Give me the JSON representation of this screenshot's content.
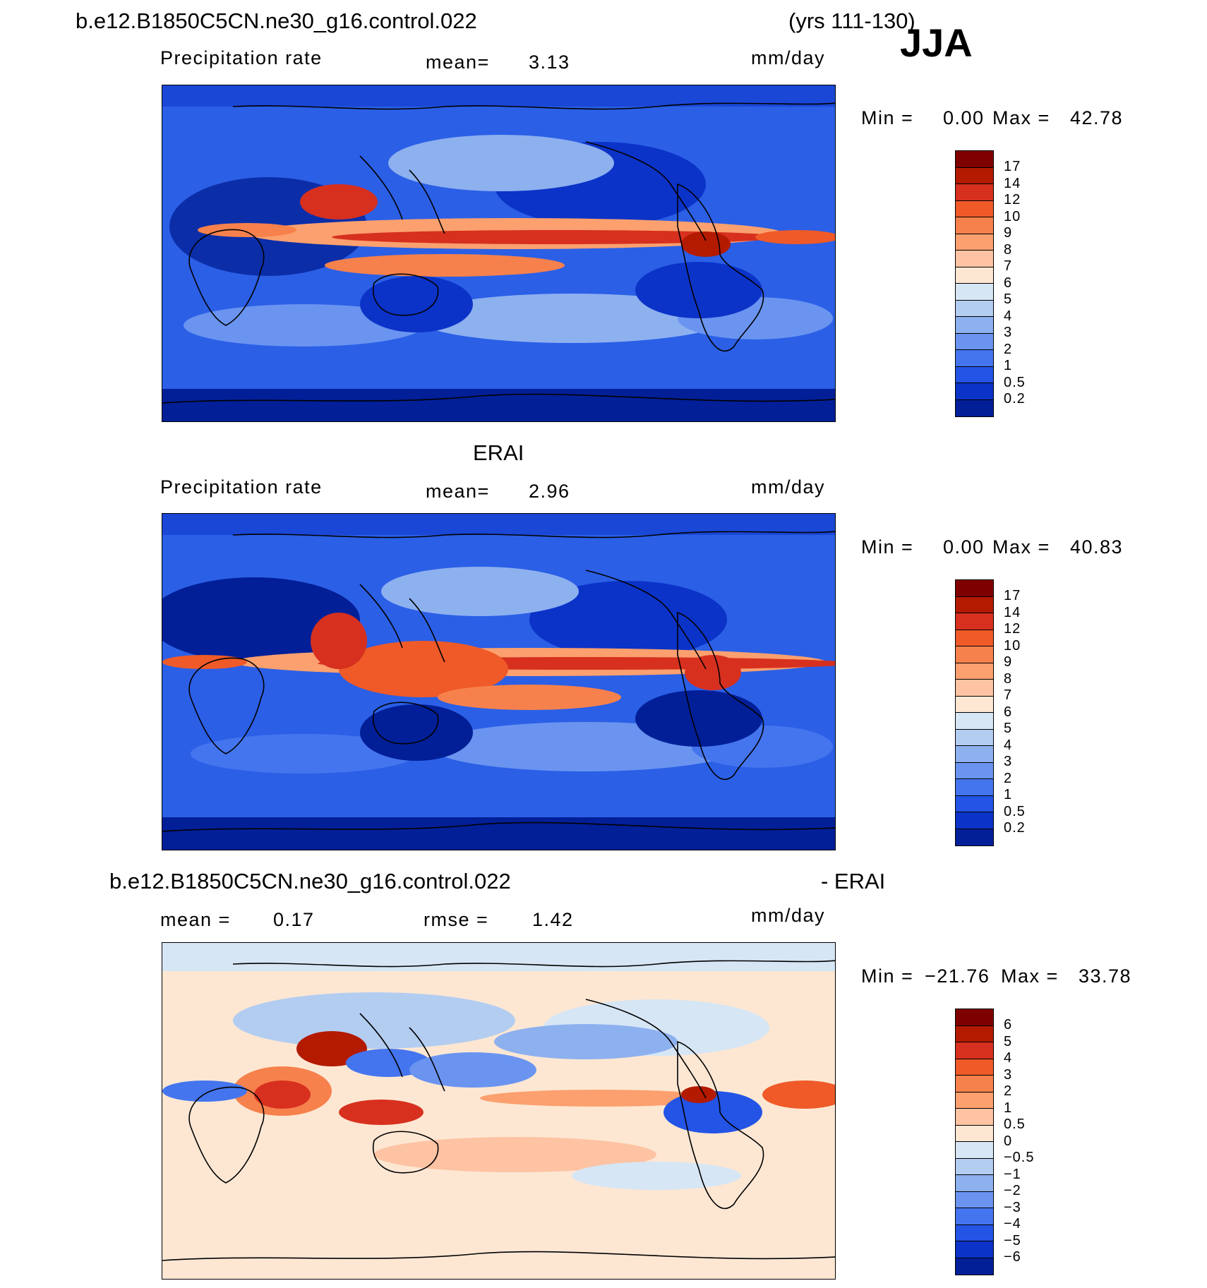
{
  "header": {
    "case_name": "b.e12.B1850C5CN.ne30_g16.control.022",
    "years": "(yrs 111-130)",
    "season": "JJA"
  },
  "panels": [
    {
      "id": "model",
      "title": "",
      "left_label": "Precipitation rate",
      "stat_label": "mean=",
      "stat_value": "3.13",
      "extra_label": "",
      "extra_value": "",
      "units": "mm/day",
      "min_label": "Min =",
      "min_value": "0.00",
      "max_label": "Max =",
      "max_value": "42.78",
      "colorbar_labels": [
        "17",
        "14",
        "12",
        "10",
        "9",
        "8",
        "7",
        "6",
        "5",
        "4",
        "3",
        "2",
        "1",
        "0.5",
        "0.2"
      ],
      "colorbar_colors": [
        "#7f0000",
        "#b31a00",
        "#d7301f",
        "#ef5a28",
        "#f7814c",
        "#fba06e",
        "#fdc3a2",
        "#fde7d3",
        "#d6e6f5",
        "#b3cdf1",
        "#8db0ef",
        "#6a94f0",
        "#4475ef",
        "#2354e6",
        "#0b33c8",
        "#021f98"
      ],
      "map_description": "model JJA precipitation"
    },
    {
      "id": "obs",
      "title": "ERAI",
      "left_label": "Precipitation rate",
      "stat_label": "mean=",
      "stat_value": "2.96",
      "extra_label": "",
      "extra_value": "",
      "units": "mm/day",
      "min_label": "Min =",
      "min_value": "0.00",
      "max_label": "Max =",
      "max_value": "40.83",
      "colorbar_labels": [
        "17",
        "14",
        "12",
        "10",
        "9",
        "8",
        "7",
        "6",
        "5",
        "4",
        "3",
        "2",
        "1",
        "0.5",
        "0.2"
      ],
      "colorbar_colors": [
        "#7f0000",
        "#b31a00",
        "#d7301f",
        "#ef5a28",
        "#f7814c",
        "#fba06e",
        "#fdc3a2",
        "#fde7d3",
        "#d6e6f5",
        "#b3cdf1",
        "#8db0ef",
        "#6a94f0",
        "#4475ef",
        "#2354e6",
        "#0b33c8",
        "#021f98"
      ],
      "map_description": "ERAI JJA precipitation"
    },
    {
      "id": "diff",
      "title": "b.e12.B1850C5CN.ne30_g16.control.022",
      "title_suffix": "- ERAI",
      "left_label": "mean =",
      "stat_label": "",
      "stat_value": "0.17",
      "extra_label": "rmse =",
      "extra_value": "1.42",
      "units": "mm/day",
      "min_label": "Min =",
      "min_value": "−21.76",
      "max_label": "Max =",
      "max_value": "33.78",
      "colorbar_labels": [
        "6",
        "5",
        "4",
        "3",
        "2",
        "1",
        "0.5",
        "0",
        "−0.5",
        "−1",
        "−2",
        "−3",
        "−4",
        "−5",
        "−6"
      ],
      "colorbar_colors": [
        "#7f0000",
        "#b31a00",
        "#d7301f",
        "#ef5a28",
        "#f7814c",
        "#fba06e",
        "#fdc3a2",
        "#fde7d3",
        "#d6e6f5",
        "#b3cdf1",
        "#8db0ef",
        "#6a94f0",
        "#4475ef",
        "#2354e6",
        "#0b33c8",
        "#021f98"
      ],
      "map_description": "model minus ERAI difference"
    }
  ]
}
